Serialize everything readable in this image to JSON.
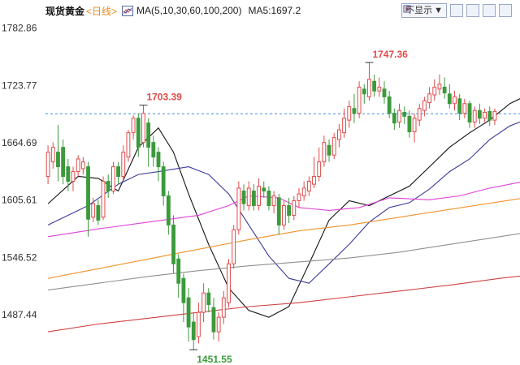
{
  "header": {
    "title": "现货黄金",
    "period": "<日线>",
    "ma_label": "MA(5,10,30,60,100,200)",
    "ma5_label": "MA5:1697.2",
    "select_label": "不显示"
  },
  "colors": {
    "up": "#e24a4a",
    "down": "#3c9a3c",
    "ma5": "#111111",
    "ma10": "#3a3a9a",
    "ma30": "#e040d8",
    "ma60": "#f0922a",
    "ma100": "#909090",
    "ma200": "#d04040",
    "ref": "#3a8ee6"
  },
  "chart_data": {
    "type": "candlestick",
    "ylim": [
      1440,
      1790
    ],
    "yticks": [
      {
        "value": 1782.86,
        "label": "1782.86"
      },
      {
        "value": 1723.77,
        "label": "1723.77"
      },
      {
        "value": 1664.69,
        "label": "1664.69"
      },
      {
        "value": 1605.61,
        "label": "1605.61"
      },
      {
        "value": 1546.52,
        "label": "1546.52"
      },
      {
        "value": 1487.44,
        "label": "1487.44"
      }
    ],
    "reference_line": 1694.6,
    "annotations": [
      {
        "label": "1703.39",
        "index": 19,
        "value": 1703.39,
        "position": "above"
      },
      {
        "label": "1747.36",
        "index": 64,
        "value": 1747.36,
        "position": "above"
      },
      {
        "label": "1451.55",
        "index": 29,
        "value": 1451.55,
        "position": "below"
      }
    ],
    "candles": [
      [
        1630,
        1655,
        1622,
        1662
      ],
      [
        1645,
        1660,
        1638,
        1665
      ],
      [
        1655,
        1640,
        1625,
        1683
      ],
      [
        1660,
        1630,
        1622,
        1668
      ],
      [
        1640,
        1625,
        1615,
        1648
      ],
      [
        1625,
        1635,
        1615,
        1640
      ],
      [
        1635,
        1648,
        1630,
        1652
      ],
      [
        1638,
        1645,
        1632,
        1650
      ],
      [
        1640,
        1586,
        1568,
        1645
      ],
      [
        1588,
        1602,
        1583,
        1608
      ],
      [
        1600,
        1585,
        1580,
        1606
      ],
      [
        1588,
        1625,
        1585,
        1630
      ],
      [
        1625,
        1615,
        1608,
        1632
      ],
      [
        1615,
        1640,
        1612,
        1645
      ],
      [
        1640,
        1630,
        1622,
        1645
      ],
      [
        1630,
        1655,
        1625,
        1662
      ],
      [
        1650,
        1675,
        1645,
        1678
      ],
      [
        1675,
        1690,
        1668,
        1693
      ],
      [
        1690,
        1660,
        1650,
        1695
      ],
      [
        1665,
        1695,
        1660,
        1703.4
      ],
      [
        1685,
        1660,
        1640,
        1690
      ],
      [
        1665,
        1650,
        1640,
        1672
      ],
      [
        1655,
        1640,
        1625,
        1660
      ],
      [
        1640,
        1610,
        1600,
        1645
      ],
      [
        1610,
        1580,
        1570,
        1615
      ],
      [
        1580,
        1540,
        1530,
        1590
      ],
      [
        1545,
        1520,
        1505,
        1550
      ],
      [
        1525,
        1500,
        1480,
        1530
      ],
      [
        1505,
        1475,
        1460,
        1515
      ],
      [
        1480,
        1462,
        1451.55,
        1490
      ],
      [
        1465,
        1490,
        1458,
        1500
      ],
      [
        1490,
        1510,
        1480,
        1520
      ],
      [
        1510,
        1498,
        1490,
        1515
      ],
      [
        1495,
        1470,
        1462,
        1505
      ],
      [
        1470,
        1485,
        1460,
        1490
      ],
      [
        1485,
        1505,
        1478,
        1512
      ],
      [
        1500,
        1540,
        1495,
        1545
      ],
      [
        1540,
        1575,
        1535,
        1580
      ],
      [
        1575,
        1618,
        1570,
        1625
      ],
      [
        1615,
        1602,
        1595,
        1622
      ],
      [
        1600,
        1618,
        1595,
        1625
      ],
      [
        1615,
        1600,
        1595,
        1622
      ],
      [
        1600,
        1620,
        1595,
        1628
      ],
      [
        1618,
        1615,
        1608,
        1625
      ],
      [
        1615,
        1600,
        1595,
        1620
      ],
      [
        1600,
        1610,
        1592,
        1615
      ],
      [
        1608,
        1580,
        1570,
        1612
      ],
      [
        1580,
        1600,
        1575,
        1605
      ],
      [
        1600,
        1590,
        1582,
        1608
      ],
      [
        1590,
        1605,
        1585,
        1610
      ],
      [
        1605,
        1612,
        1598,
        1618
      ],
      [
        1610,
        1618,
        1605,
        1625
      ],
      [
        1615,
        1625,
        1610,
        1630
      ],
      [
        1622,
        1630,
        1618,
        1650
      ],
      [
        1630,
        1645,
        1625,
        1660
      ],
      [
        1645,
        1665,
        1640,
        1672
      ],
      [
        1662,
        1652,
        1645,
        1668
      ],
      [
        1652,
        1670,
        1648,
        1675
      ],
      [
        1668,
        1678,
        1660,
        1684
      ],
      [
        1675,
        1690,
        1670,
        1700
      ],
      [
        1688,
        1702,
        1680,
        1708
      ],
      [
        1700,
        1695,
        1685,
        1715
      ],
      [
        1695,
        1722,
        1690,
        1728
      ],
      [
        1720,
        1715,
        1705,
        1725
      ],
      [
        1712,
        1730,
        1708,
        1747.4
      ],
      [
        1728,
        1718,
        1712,
        1735
      ],
      [
        1718,
        1722,
        1712,
        1732
      ],
      [
        1720,
        1712,
        1705,
        1728
      ],
      [
        1712,
        1695,
        1690,
        1718
      ],
      [
        1695,
        1685,
        1678,
        1700
      ],
      [
        1686,
        1698,
        1680,
        1705
      ],
      [
        1696,
        1692,
        1684,
        1702
      ],
      [
        1692,
        1676,
        1670,
        1698
      ],
      [
        1676,
        1690,
        1665,
        1695
      ],
      [
        1688,
        1700,
        1682,
        1705
      ],
      [
        1698,
        1708,
        1692,
        1712
      ],
      [
        1706,
        1715,
        1700,
        1722
      ],
      [
        1714,
        1722,
        1708,
        1730
      ],
      [
        1720,
        1725,
        1714,
        1735
      ],
      [
        1722,
        1716,
        1710,
        1732
      ],
      [
        1715,
        1705,
        1700,
        1725
      ],
      [
        1705,
        1712,
        1698,
        1718
      ],
      [
        1710,
        1695,
        1688,
        1715
      ],
      [
        1695,
        1705,
        1690,
        1710
      ],
      [
        1705,
        1686,
        1680,
        1708
      ],
      [
        1686,
        1698,
        1680,
        1702
      ],
      [
        1698,
        1690,
        1684,
        1705
      ],
      [
        1690,
        1696,
        1686,
        1700
      ],
      [
        1697,
        1688,
        1682,
        1702
      ],
      [
        1688,
        1697,
        1683,
        1700
      ]
    ],
    "series": [
      {
        "name": "MA5",
        "color": "#111111",
        "values": [
          [
            0,
            1602
          ],
          [
            6,
            1630
          ],
          [
            10,
            1628
          ],
          [
            14,
            1615
          ],
          [
            18,
            1660
          ],
          [
            22,
            1680
          ],
          [
            25,
            1655
          ],
          [
            28,
            1612
          ],
          [
            32,
            1560
          ],
          [
            36,
            1515
          ],
          [
            40,
            1492
          ],
          [
            44,
            1485
          ],
          [
            48,
            1496
          ],
          [
            52,
            1540
          ],
          [
            56,
            1585
          ],
          [
            60,
            1605
          ],
          [
            64,
            1600
          ],
          [
            68,
            1610
          ],
          [
            72,
            1620
          ],
          [
            76,
            1640
          ],
          [
            80,
            1660
          ],
          [
            84,
            1675
          ],
          [
            88,
            1688
          ],
          [
            92,
            1705
          ],
          [
            96,
            1715
          ],
          [
            100,
            1722
          ],
          [
            104,
            1724
          ],
          [
            108,
            1718
          ],
          [
            112,
            1712
          ],
          [
            116,
            1706
          ],
          [
            118,
            1700
          ]
        ]
      },
      {
        "name": "MA10",
        "color": "#3a3a9a",
        "values": [
          [
            0,
            1580
          ],
          [
            8,
            1600
          ],
          [
            14,
            1622
          ],
          [
            18,
            1632
          ],
          [
            22,
            1635
          ],
          [
            28,
            1640
          ],
          [
            32,
            1632
          ],
          [
            36,
            1612
          ],
          [
            40,
            1580
          ],
          [
            44,
            1548
          ],
          [
            48,
            1525
          ],
          [
            52,
            1520
          ],
          [
            56,
            1540
          ],
          [
            60,
            1560
          ],
          [
            64,
            1583
          ],
          [
            68,
            1598
          ],
          [
            72,
            1603
          ],
          [
            76,
            1617
          ],
          [
            80,
            1635
          ],
          [
            84,
            1648
          ],
          [
            88,
            1668
          ],
          [
            92,
            1682
          ],
          [
            96,
            1690
          ],
          [
            100,
            1698
          ],
          [
            104,
            1706
          ],
          [
            108,
            1715
          ],
          [
            112,
            1712
          ],
          [
            116,
            1708
          ],
          [
            118,
            1705
          ]
        ]
      },
      {
        "name": "MA30",
        "color": "#e040d8",
        "values": [
          [
            0,
            1568
          ],
          [
            10,
            1576
          ],
          [
            20,
            1583
          ],
          [
            30,
            1590
          ],
          [
            36,
            1600
          ],
          [
            40,
            1610
          ],
          [
            46,
            1608
          ],
          [
            50,
            1598
          ],
          [
            56,
            1595
          ],
          [
            62,
            1598
          ],
          [
            68,
            1608
          ],
          [
            76,
            1606
          ],
          [
            82,
            1610
          ],
          [
            88,
            1618
          ],
          [
            94,
            1624
          ],
          [
            100,
            1630
          ],
          [
            104,
            1640
          ],
          [
            108,
            1652
          ],
          [
            112,
            1662
          ],
          [
            116,
            1672
          ],
          [
            118,
            1678
          ]
        ]
      },
      {
        "name": "MA60",
        "color": "#f0922a",
        "values": [
          [
            0,
            1525
          ],
          [
            10,
            1535
          ],
          [
            20,
            1545
          ],
          [
            30,
            1555
          ],
          [
            40,
            1565
          ],
          [
            50,
            1574
          ],
          [
            60,
            1580
          ],
          [
            70,
            1588
          ],
          [
            80,
            1596
          ],
          [
            90,
            1604
          ],
          [
            100,
            1612
          ],
          [
            110,
            1625
          ],
          [
            118,
            1638
          ]
        ]
      },
      {
        "name": "MA100",
        "color": "#909090",
        "values": [
          [
            0,
            1513
          ],
          [
            10,
            1520
          ],
          [
            20,
            1527
          ],
          [
            30,
            1533
          ],
          [
            40,
            1538
          ],
          [
            50,
            1542
          ],
          [
            60,
            1546
          ],
          [
            70,
            1552
          ],
          [
            80,
            1560
          ],
          [
            90,
            1568
          ],
          [
            100,
            1576
          ],
          [
            110,
            1588
          ],
          [
            118,
            1598
          ]
        ]
      },
      {
        "name": "MA200",
        "color": "#d04040",
        "values": [
          [
            0,
            1470
          ],
          [
            10,
            1478
          ],
          [
            20,
            1484
          ],
          [
            30,
            1490
          ],
          [
            40,
            1496
          ],
          [
            50,
            1500
          ],
          [
            60,
            1506
          ],
          [
            70,
            1512
          ],
          [
            80,
            1518
          ],
          [
            90,
            1525
          ],
          [
            100,
            1531
          ],
          [
            110,
            1538
          ],
          [
            118,
            1545
          ]
        ]
      }
    ]
  }
}
